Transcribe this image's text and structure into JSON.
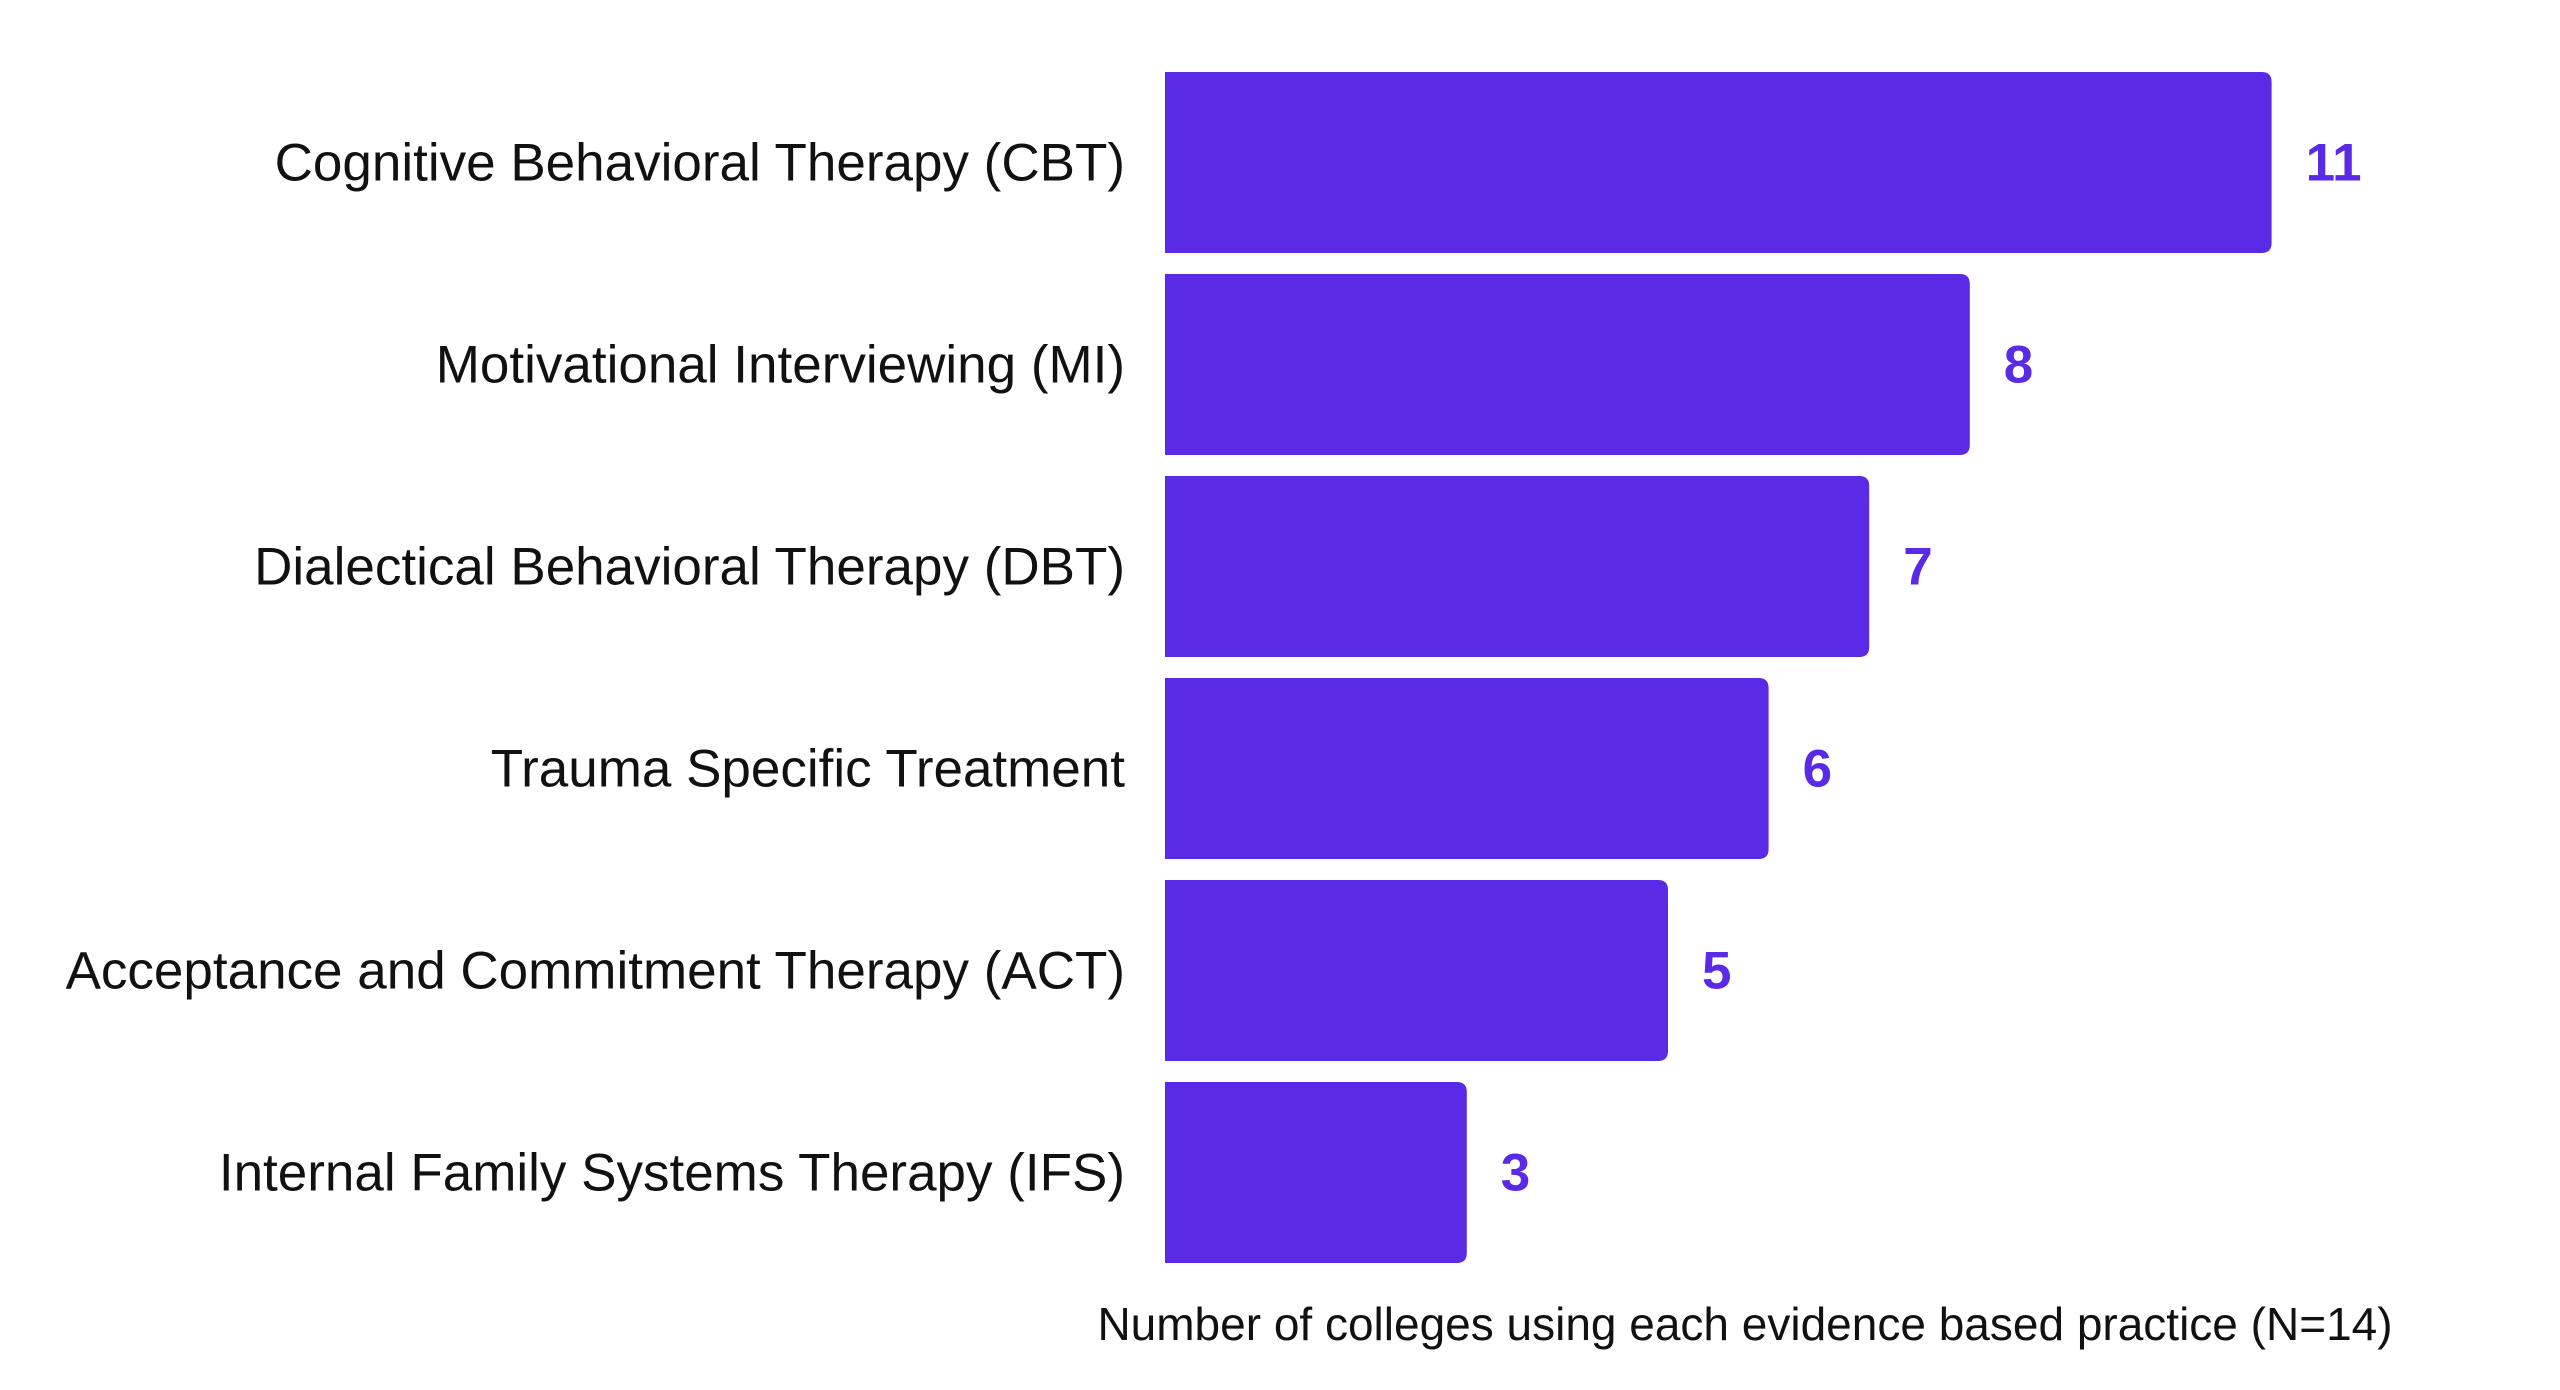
{
  "chart_data": {
    "type": "bar",
    "orientation": "horizontal",
    "categories": [
      "Cognitive Behavioral Therapy (CBT)",
      "Motivational Interviewing (MI)",
      "Dialectical Behavioral Therapy (DBT)",
      "Trauma Specific Treatment",
      "Acceptance and Commitment Therapy (ACT)",
      "Internal Family Systems Therapy (IFS)"
    ],
    "values": [
      11,
      8,
      7,
      6,
      5,
      3
    ],
    "xlabel": "Number of colleges using each evidence based practice  (N=14)",
    "ylabel": "",
    "title": "",
    "xlim": [
      0,
      11
    ],
    "grid": false,
    "data_labels": true,
    "colors": {
      "bar": "#5A2AE6",
      "value_label": "#5A2AE6",
      "text": "#111111"
    }
  }
}
